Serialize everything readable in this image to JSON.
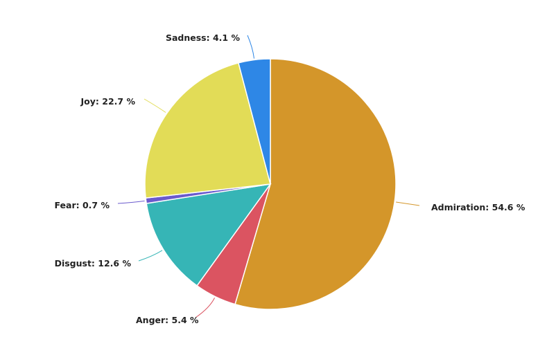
{
  "chart_data": {
    "type": "pie",
    "title": "",
    "slices": [
      {
        "name": "Admiration",
        "value": 54.6,
        "label": "Admiration: 54.6 %",
        "color": "#d4962a"
      },
      {
        "name": "Anger",
        "value": 5.4,
        "label": "Anger: 5.4 %",
        "color": "#db5461"
      },
      {
        "name": "Disgust",
        "value": 12.6,
        "label": "Disgust: 12.6 %",
        "color": "#36b5b6"
      },
      {
        "name": "Fear",
        "value": 0.7,
        "label": "Fear: 0.7 %",
        "color": "#6a5acd"
      },
      {
        "name": "Joy",
        "value": 22.7,
        "label": "Joy: 22.7 %",
        "color": "#e2dc57"
      },
      {
        "name": "Sadness",
        "value": 4.1,
        "label": "Sadness: 4.1 %",
        "color": "#2e87e6"
      }
    ],
    "start_angle_deg": 0,
    "direction": "clockwise",
    "legend": "none"
  }
}
